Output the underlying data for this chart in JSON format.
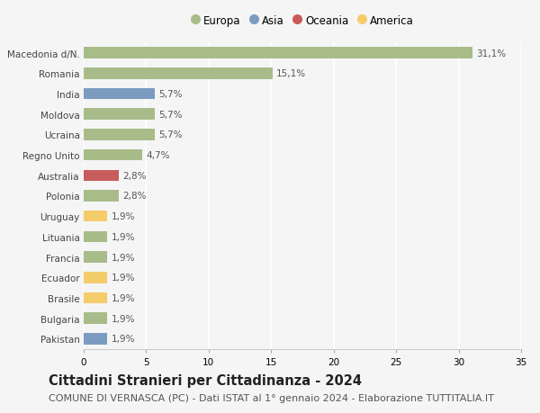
{
  "categories": [
    "Pakistan",
    "Bulgaria",
    "Brasile",
    "Ecuador",
    "Francia",
    "Lituania",
    "Uruguay",
    "Polonia",
    "Australia",
    "Regno Unito",
    "Ucraina",
    "Moldova",
    "India",
    "Romania",
    "Macedonia d/N."
  ],
  "values": [
    1.9,
    1.9,
    1.9,
    1.9,
    1.9,
    1.9,
    1.9,
    2.8,
    2.8,
    4.7,
    5.7,
    5.7,
    5.7,
    15.1,
    31.1
  ],
  "colors": [
    "#7b9cc0",
    "#a8bc8a",
    "#f5cc6a",
    "#f5cc6a",
    "#a8bc8a",
    "#a8bc8a",
    "#f5cc6a",
    "#a8bc8a",
    "#c85c5c",
    "#a8bc8a",
    "#a8bc8a",
    "#a8bc8a",
    "#7b9cc0",
    "#a8bc8a",
    "#a8bc8a"
  ],
  "labels": [
    "1,9%",
    "1,9%",
    "1,9%",
    "1,9%",
    "1,9%",
    "1,9%",
    "1,9%",
    "2,8%",
    "2,8%",
    "4,7%",
    "5,7%",
    "5,7%",
    "5,7%",
    "15,1%",
    "31,1%"
  ],
  "legend": [
    {
      "label": "Europa",
      "color": "#a8bc8a"
    },
    {
      "label": "Asia",
      "color": "#7b9cc0"
    },
    {
      "label": "Oceania",
      "color": "#c85c5c"
    },
    {
      "label": "America",
      "color": "#f5cc6a"
    }
  ],
  "title": "Cittadini Stranieri per Cittadinanza - 2024",
  "subtitle": "COMUNE DI VERNASCA (PC) - Dati ISTAT al 1° gennaio 2024 - Elaborazione TUTTITALIA.IT",
  "xlim": [
    0,
    35
  ],
  "xticks": [
    0,
    5,
    10,
    15,
    20,
    25,
    30,
    35
  ],
  "background_color": "#f5f5f5",
  "plot_background": "#f5f5f5",
  "grid_color": "#ffffff",
  "bar_height": 0.55,
  "title_fontsize": 10.5,
  "subtitle_fontsize": 8,
  "label_fontsize": 7.5,
  "tick_fontsize": 7.5,
  "legend_fontsize": 8.5
}
